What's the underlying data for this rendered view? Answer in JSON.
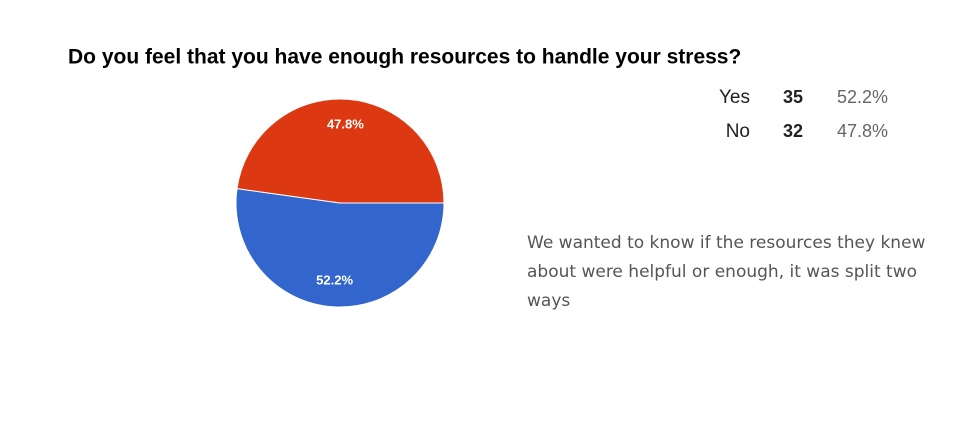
{
  "chart_data": {
    "type": "pie",
    "title": "Do you feel that you have enough resources to handle your stress?",
    "categories": [
      "Yes",
      "No"
    ],
    "counts": [
      35,
      32
    ],
    "values": [
      52.2,
      47.8
    ],
    "value_labels": [
      "52.2%",
      "47.8%"
    ],
    "colors": [
      "#3366cc",
      "#dc3912"
    ],
    "annotation": "We wanted to know if the resources they knew about were helpful or enough, it was split two ways"
  }
}
